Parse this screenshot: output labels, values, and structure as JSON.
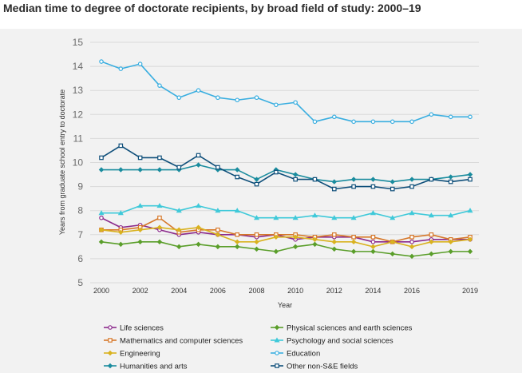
{
  "header": {
    "title": "Median time to degree of doctorate recipients, by broad field of study: 2000–19"
  },
  "chart_data": {
    "type": "line",
    "title": "Median time to degree of doctorate recipients, by broad field of study: 2000–19",
    "xlabel": "Year",
    "ylabel": "Years from graduate school entry to doctorate",
    "ylim": [
      5,
      15
    ],
    "xlim": [
      2000,
      2019
    ],
    "x": [
      2000,
      2001,
      2002,
      2003,
      2004,
      2005,
      2006,
      2007,
      2008,
      2009,
      2010,
      2011,
      2012,
      2013,
      2014,
      2015,
      2016,
      2017,
      2018,
      2019
    ],
    "yticks": [
      "5",
      "6",
      "7",
      "8",
      "9",
      "10",
      "11",
      "12",
      "13",
      "14",
      "15"
    ],
    "xticks": [
      {
        "value": 2000,
        "label": "2000"
      },
      {
        "value": 2002,
        "label": "2002"
      },
      {
        "value": 2004,
        "label": "2004"
      },
      {
        "value": 2006,
        "label": "2006"
      },
      {
        "value": 2008,
        "label": "2008"
      },
      {
        "value": 2010,
        "label": "2010"
      },
      {
        "value": 2012,
        "label": "2012"
      },
      {
        "value": 2014,
        "label": "2014"
      },
      {
        "value": 2016,
        "label": "2016"
      },
      {
        "value": 2019,
        "label": "2019"
      }
    ],
    "grid": "horizontal",
    "legend_position": "bottom",
    "series": [
      {
        "name": "Life sciences",
        "color": "#8b2a8c",
        "marker": "circle",
        "values": [
          7.7,
          7.3,
          7.4,
          7.2,
          7.0,
          7.1,
          7.0,
          7.0,
          6.9,
          7.0,
          6.8,
          6.9,
          6.9,
          6.9,
          6.7,
          6.7,
          6.7,
          6.8,
          6.8,
          6.8
        ]
      },
      {
        "name": "Physical sciences and earth sciences",
        "color": "#5a9e2a",
        "marker": "diamond",
        "values": [
          6.7,
          6.6,
          6.7,
          6.7,
          6.5,
          6.6,
          6.5,
          6.5,
          6.4,
          6.3,
          6.5,
          6.6,
          6.4,
          6.3,
          6.3,
          6.2,
          6.1,
          6.2,
          6.3,
          6.3
        ]
      },
      {
        "name": "Mathematics and computer sciences",
        "color": "#d6782a",
        "marker": "square",
        "values": [
          7.2,
          7.2,
          7.3,
          7.7,
          7.1,
          7.2,
          7.2,
          7.0,
          7.0,
          7.0,
          7.0,
          6.9,
          7.0,
          6.9,
          6.9,
          6.7,
          6.9,
          7.0,
          6.8,
          6.9
        ]
      },
      {
        "name": "Psychology and social sciences",
        "color": "#3fc9d9",
        "marker": "triangle",
        "values": [
          7.9,
          7.9,
          8.2,
          8.2,
          8.0,
          8.2,
          8.0,
          8.0,
          7.7,
          7.7,
          7.7,
          7.8,
          7.7,
          7.7,
          7.9,
          7.7,
          7.9,
          7.8,
          7.8,
          8.0
        ]
      },
      {
        "name": "Engineering",
        "color": "#d9b21f",
        "marker": "diamond",
        "values": [
          7.2,
          7.1,
          7.2,
          7.3,
          7.2,
          7.3,
          7.0,
          6.7,
          6.7,
          6.9,
          6.9,
          6.8,
          6.7,
          6.7,
          6.5,
          6.7,
          6.5,
          6.7,
          6.7,
          6.8
        ]
      },
      {
        "name": "Education",
        "color": "#3aaee0",
        "marker": "circle",
        "values": [
          14.2,
          13.9,
          14.1,
          13.2,
          12.7,
          13.0,
          12.7,
          12.6,
          12.7,
          12.4,
          12.5,
          11.7,
          11.9,
          11.7,
          11.7,
          11.7,
          11.7,
          12.0,
          11.9,
          11.9
        ]
      },
      {
        "name": "Humanities and arts",
        "color": "#1a8c9e",
        "marker": "diamond",
        "values": [
          9.7,
          9.7,
          9.7,
          9.7,
          9.7,
          9.9,
          9.7,
          9.7,
          9.3,
          9.7,
          9.5,
          9.3,
          9.2,
          9.3,
          9.3,
          9.2,
          9.3,
          9.3,
          9.4,
          9.5
        ]
      },
      {
        "name": "Other non-S&E fields",
        "color": "#0f4f7a",
        "marker": "square",
        "values": [
          10.2,
          10.7,
          10.2,
          10.2,
          9.8,
          10.3,
          9.8,
          9.4,
          9.1,
          9.6,
          9.3,
          9.3,
          8.9,
          9.0,
          9.0,
          8.9,
          9.0,
          9.3,
          9.2,
          9.3
        ]
      }
    ]
  }
}
